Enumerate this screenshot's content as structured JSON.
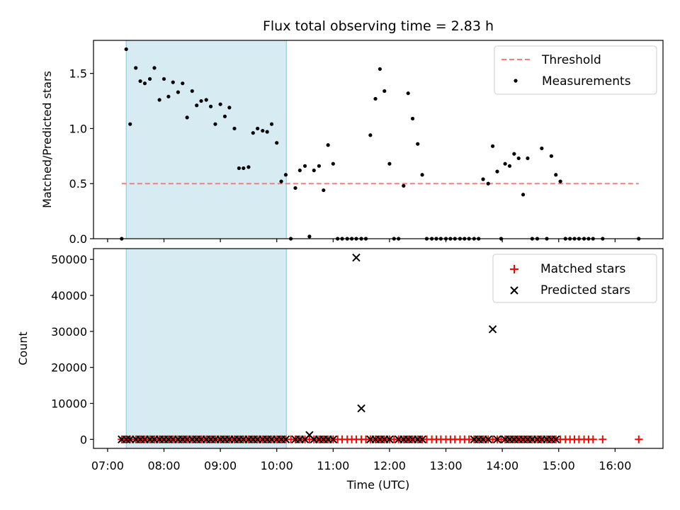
{
  "chart_data": [
    {
      "type": "scatter",
      "title": "Flux total observing time = 2.83 h",
      "xlabel": "",
      "ylabel": "Matched/Predicted stars",
      "xlim_hours": [
        6.75,
        16.85
      ],
      "ylim": [
        0,
        1.8
      ],
      "yticks": [
        0.0,
        0.5,
        1.0,
        1.5
      ],
      "ytick_labels": [
        "0.0",
        "0.5",
        "1.0",
        "1.5"
      ],
      "shaded_span_hours": [
        7.33,
        10.17
      ],
      "grid": false,
      "legend_position": "top-right",
      "threshold": {
        "name": "Threshold",
        "y": 0.5,
        "x_range_hours": [
          7.25,
          16.42
        ],
        "color": "#f08080",
        "style": "dashed"
      },
      "series": [
        {
          "name": "Measurements",
          "color": "#000000",
          "marker": "dot",
          "points": [
            [
              7.25,
              0.0
            ],
            [
              7.33,
              1.72
            ],
            [
              7.4,
              1.04
            ],
            [
              7.5,
              1.55
            ],
            [
              7.58,
              1.43
            ],
            [
              7.66,
              1.41
            ],
            [
              7.75,
              1.45
            ],
            [
              7.83,
              1.55
            ],
            [
              7.92,
              1.26
            ],
            [
              8.0,
              1.45
            ],
            [
              8.08,
              1.29
            ],
            [
              8.16,
              1.42
            ],
            [
              8.25,
              1.33
            ],
            [
              8.33,
              1.41
            ],
            [
              8.41,
              1.1
            ],
            [
              8.5,
              1.34
            ],
            [
              8.58,
              1.21
            ],
            [
              8.66,
              1.25
            ],
            [
              8.75,
              1.26
            ],
            [
              8.83,
              1.2
            ],
            [
              8.91,
              1.04
            ],
            [
              9.0,
              1.22
            ],
            [
              9.08,
              1.11
            ],
            [
              9.16,
              1.19
            ],
            [
              9.25,
              1.0
            ],
            [
              9.33,
              0.64
            ],
            [
              9.41,
              0.64
            ],
            [
              9.5,
              0.65
            ],
            [
              9.58,
              0.96
            ],
            [
              9.66,
              1.0
            ],
            [
              9.75,
              0.98
            ],
            [
              9.83,
              0.97
            ],
            [
              9.91,
              1.04
            ],
            [
              10.0,
              0.87
            ],
            [
              10.08,
              0.52
            ],
            [
              10.16,
              0.58
            ],
            [
              10.25,
              0.0
            ],
            [
              10.33,
              0.46
            ],
            [
              10.41,
              0.62
            ],
            [
              10.5,
              0.66
            ],
            [
              10.58,
              0.02
            ],
            [
              10.66,
              0.62
            ],
            [
              10.75,
              0.66
            ],
            [
              10.83,
              0.44
            ],
            [
              10.91,
              0.85
            ],
            [
              11.0,
              0.68
            ],
            [
              11.08,
              0.0
            ],
            [
              11.16,
              0.0
            ],
            [
              11.25,
              0.0
            ],
            [
              11.33,
              0.0
            ],
            [
              11.41,
              0.0
            ],
            [
              11.5,
              0.0
            ],
            [
              11.58,
              0.0
            ],
            [
              11.66,
              0.94
            ],
            [
              11.75,
              1.27
            ],
            [
              11.83,
              1.54
            ],
            [
              11.91,
              1.34
            ],
            [
              12.0,
              0.68
            ],
            [
              12.08,
              0.0
            ],
            [
              12.16,
              0.0
            ],
            [
              12.25,
              0.48
            ],
            [
              12.33,
              1.32
            ],
            [
              12.41,
              1.09
            ],
            [
              12.5,
              0.86
            ],
            [
              12.58,
              0.58
            ],
            [
              12.66,
              0.0
            ],
            [
              12.75,
              0.0
            ],
            [
              12.83,
              0.0
            ],
            [
              12.91,
              0.0
            ],
            [
              13.0,
              0.0
            ],
            [
              13.08,
              0.0
            ],
            [
              13.16,
              0.0
            ],
            [
              13.25,
              0.0
            ],
            [
              13.33,
              0.0
            ],
            [
              13.41,
              0.0
            ],
            [
              13.5,
              0.0
            ],
            [
              13.58,
              0.0
            ],
            [
              13.66,
              0.54
            ],
            [
              13.75,
              0.5
            ],
            [
              13.83,
              0.84
            ],
            [
              13.91,
              0.61
            ],
            [
              13.98,
              0.0
            ],
            [
              14.05,
              0.68
            ],
            [
              14.13,
              0.66
            ],
            [
              14.21,
              0.77
            ],
            [
              14.29,
              0.73
            ],
            [
              14.37,
              0.4
            ],
            [
              14.45,
              0.73
            ],
            [
              14.53,
              0.0
            ],
            [
              14.62,
              0.0
            ],
            [
              14.7,
              0.82
            ],
            [
              14.79,
              0.0
            ],
            [
              14.87,
              0.75
            ],
            [
              14.95,
              0.58
            ],
            [
              15.03,
              0.52
            ],
            [
              15.12,
              0.0
            ],
            [
              15.2,
              0.0
            ],
            [
              15.28,
              0.0
            ],
            [
              15.36,
              0.0
            ],
            [
              15.45,
              0.0
            ],
            [
              15.53,
              0.0
            ],
            [
              15.61,
              0.0
            ],
            [
              15.78,
              0.0
            ],
            [
              16.42,
              0.0
            ]
          ]
        }
      ]
    },
    {
      "type": "scatter",
      "title": "",
      "xlabel": "Time (UTC)",
      "ylabel": "Count",
      "xlim_hours": [
        6.75,
        16.85
      ],
      "ylim": [
        -2500,
        53000
      ],
      "yticks": [
        0,
        10000,
        20000,
        30000,
        40000,
        50000
      ],
      "ytick_labels": [
        "0",
        "10000",
        "20000",
        "30000",
        "40000",
        "50000"
      ],
      "xticks_hours": [
        7,
        8,
        9,
        10,
        11,
        12,
        13,
        14,
        15,
        16
      ],
      "xtick_labels": [
        "07:00",
        "08:00",
        "09:00",
        "10:00",
        "11:00",
        "12:00",
        "13:00",
        "14:00",
        "15:00",
        "16:00"
      ],
      "shaded_span_hours": [
        7.33,
        10.17
      ],
      "grid": false,
      "legend_position": "top-right",
      "series": [
        {
          "name": "Matched stars",
          "color": "#ff0000",
          "marker": "plus",
          "x": [
            7.25,
            7.33,
            7.4,
            7.5,
            7.58,
            7.66,
            7.75,
            7.83,
            7.92,
            8.0,
            8.08,
            8.16,
            8.25,
            8.33,
            8.41,
            8.5,
            8.58,
            8.66,
            8.75,
            8.83,
            8.91,
            9.0,
            9.08,
            9.16,
            9.25,
            9.33,
            9.41,
            9.5,
            9.58,
            9.66,
            9.75,
            9.83,
            9.91,
            10.0,
            10.08,
            10.16,
            10.25,
            10.33,
            10.41,
            10.5,
            10.58,
            10.66,
            10.75,
            10.83,
            10.91,
            11.0,
            11.08,
            11.16,
            11.25,
            11.33,
            11.41,
            11.5,
            11.58,
            11.66,
            11.75,
            11.83,
            11.91,
            12.0,
            12.08,
            12.16,
            12.25,
            12.33,
            12.41,
            12.5,
            12.58,
            12.66,
            12.75,
            12.83,
            12.91,
            13.0,
            13.08,
            13.16,
            13.25,
            13.33,
            13.41,
            13.5,
            13.58,
            13.66,
            13.75,
            13.83,
            13.91,
            13.98,
            14.05,
            14.13,
            14.21,
            14.29,
            14.37,
            14.45,
            14.53,
            14.62,
            14.7,
            14.79,
            14.87,
            14.95,
            15.03,
            15.12,
            15.2,
            15.28,
            15.36,
            15.45,
            15.53,
            15.61,
            15.78,
            16.42
          ],
          "y": [
            0,
            0,
            0,
            0,
            0,
            0,
            0,
            0,
            0,
            0,
            0,
            0,
            0,
            0,
            0,
            0,
            0,
            0,
            0,
            0,
            0,
            0,
            0,
            0,
            0,
            0,
            0,
            0,
            0,
            0,
            0,
            0,
            0,
            0,
            0,
            0,
            0,
            0,
            0,
            0,
            0,
            0,
            0,
            0,
            0,
            0,
            0,
            0,
            0,
            0,
            0,
            0,
            0,
            0,
            0,
            0,
            0,
            0,
            0,
            0,
            0,
            0,
            0,
            0,
            0,
            0,
            0,
            0,
            0,
            0,
            0,
            0,
            0,
            0,
            0,
            0,
            0,
            0,
            0,
            0,
            0,
            0,
            0,
            0,
            0,
            0,
            0,
            0,
            0,
            0,
            0,
            0,
            0,
            0,
            0,
            0,
            0,
            0,
            0,
            0,
            0,
            0,
            0,
            0
          ]
        },
        {
          "name": "Predicted stars",
          "color": "#000000",
          "marker": "x",
          "x": [
            7.25,
            7.33,
            7.4,
            7.5,
            7.58,
            7.66,
            7.75,
            7.83,
            7.92,
            8.0,
            8.08,
            8.16,
            8.25,
            8.33,
            8.41,
            8.5,
            8.58,
            8.66,
            8.75,
            8.83,
            8.91,
            9.0,
            9.08,
            9.16,
            9.25,
            9.33,
            9.41,
            9.5,
            9.58,
            9.66,
            9.75,
            9.83,
            9.91,
            10.0,
            10.08,
            10.16,
            10.33,
            10.41,
            10.5,
            10.58,
            10.66,
            10.75,
            10.83,
            10.91,
            11.0,
            11.41,
            11.5,
            11.66,
            11.75,
            11.83,
            11.91,
            12.0,
            12.16,
            12.25,
            12.33,
            12.41,
            12.5,
            12.58,
            13.5,
            13.58,
            13.66,
            13.75,
            13.83,
            13.91,
            14.05,
            14.13,
            14.21,
            14.29,
            14.37,
            14.45,
            14.53,
            14.62,
            14.7,
            14.79,
            14.87,
            14.95
          ],
          "y": [
            0,
            0,
            0,
            0,
            0,
            0,
            0,
            0,
            0,
            0,
            0,
            0,
            0,
            0,
            0,
            0,
            0,
            0,
            0,
            0,
            0,
            0,
            0,
            0,
            0,
            0,
            0,
            0,
            0,
            0,
            0,
            0,
            0,
            0,
            0,
            0,
            0,
            0,
            0,
            1200,
            0,
            0,
            0,
            0,
            0,
            50500,
            8600,
            0,
            0,
            0,
            0,
            0,
            0,
            0,
            0,
            0,
            0,
            0,
            0,
            0,
            0,
            0,
            30600,
            0,
            0,
            0,
            0,
            0,
            0,
            0,
            0,
            0,
            0,
            0,
            0,
            0
          ]
        }
      ]
    }
  ]
}
